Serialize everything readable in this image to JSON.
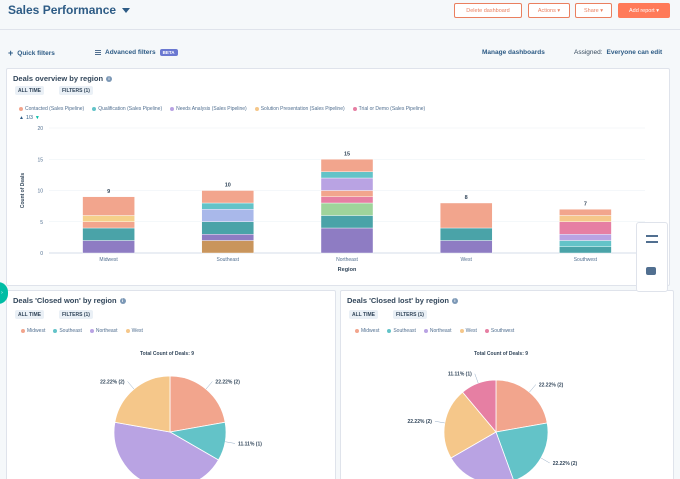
{
  "header": {
    "title": "Sales Performance",
    "buttons": {
      "delete": "Delete dashboard",
      "actions": "Actions ▾",
      "share": "Share ▾",
      "add_report": "Add report ▾"
    }
  },
  "filterbar": {
    "quick_filters": "Quick filters",
    "advanced_filters": "Advanced filters",
    "beta": "BETA",
    "manage": "Manage dashboards",
    "assigned_label": "Assigned:",
    "assigned_value": "Everyone can edit"
  },
  "overview": {
    "title": "Deals overview by region",
    "chip_time": "ALL TIME",
    "chip_filters": "FILTERS (1)",
    "pager": "1/3",
    "legend": [
      {
        "label": "Contacted (Sales Pipeline)",
        "color": "#f2a58d"
      },
      {
        "label": "Qualification (Sales Pipeline)",
        "color": "#63c3c8"
      },
      {
        "label": "Needs Analysis (Sales Pipeline)",
        "color": "#b9a3e3"
      },
      {
        "label": "Solution Presentation (Sales Pipeline)",
        "color": "#f5c78a"
      },
      {
        "label": "Trial or Demo (Sales Pipeline)",
        "color": "#e67fa3"
      }
    ]
  },
  "closed_won": {
    "title": "Deals 'Closed won' by region",
    "chip_time": "ALL TIME",
    "chip_filters": "FILTERS (1)",
    "total_label": "Total Count of Deals: 9",
    "legend": [
      {
        "label": "Midwest",
        "color": "#f2a58d"
      },
      {
        "label": "Southeast",
        "color": "#63c3c8"
      },
      {
        "label": "Northeast",
        "color": "#b9a3e3"
      },
      {
        "label": "West",
        "color": "#f5c78a"
      }
    ]
  },
  "closed_lost": {
    "title": "Deals 'Closed lost' by region",
    "chip_time": "ALL TIME",
    "chip_filters": "FILTERS (1)",
    "total_label": "Total Count of Deals: 9",
    "legend": [
      {
        "label": "Midwest",
        "color": "#f2a58d"
      },
      {
        "label": "Southeast",
        "color": "#63c3c8"
      },
      {
        "label": "Northeast",
        "color": "#b9a3e3"
      },
      {
        "label": "West",
        "color": "#f5c78a"
      },
      {
        "label": "Southwest",
        "color": "#e67fa3"
      }
    ]
  },
  "chart_data": [
    {
      "type": "bar",
      "stacked": true,
      "title": "Deals overview by region",
      "xlabel": "Region",
      "ylabel": "Count of Deals",
      "ylim": [
        0,
        20
      ],
      "yticks": [
        0,
        5,
        10,
        15,
        20
      ],
      "categories": [
        "Midwest",
        "Southeast",
        "Northeast",
        "West",
        "Southwest"
      ],
      "totals": [
        9,
        10,
        15,
        8,
        7
      ],
      "segments": [
        [
          {
            "color": "#8e7cc3",
            "value": 2
          },
          {
            "color": "#4aa3a8",
            "value": 2
          },
          {
            "color": "#f2a58d",
            "value": 1
          },
          {
            "color": "#f5d08a",
            "value": 1
          },
          {
            "color": "#f2a58d",
            "value": 3
          }
        ],
        [
          {
            "color": "#c9955c",
            "value": 2
          },
          {
            "color": "#8e7cc3",
            "value": 1
          },
          {
            "color": "#4aa3a8",
            "value": 2
          },
          {
            "color": "#a9b8ea",
            "value": 2
          },
          {
            "color": "#63c3c8",
            "value": 1
          },
          {
            "color": "#f2a58d",
            "value": 2
          }
        ],
        [
          {
            "color": "#8e7cc3",
            "value": 4
          },
          {
            "color": "#4aa3a8",
            "value": 2
          },
          {
            "color": "#9fd49b",
            "value": 2
          },
          {
            "color": "#e67fa3",
            "value": 1
          },
          {
            "color": "#f2a58d",
            "value": 1
          },
          {
            "color": "#b9a3e3",
            "value": 2
          },
          {
            "color": "#63c3c8",
            "value": 1
          },
          {
            "color": "#f2a58d",
            "value": 2
          }
        ],
        [
          {
            "color": "#8e7cc3",
            "value": 2
          },
          {
            "color": "#4aa3a8",
            "value": 2
          },
          {
            "color": "#f2a58d",
            "value": 4
          }
        ],
        [
          {
            "color": "#4aa3a8",
            "value": 1
          },
          {
            "color": "#63c3c8",
            "value": 1
          },
          {
            "color": "#b9a3e3",
            "value": 1
          },
          {
            "color": "#e67fa3",
            "value": 2
          },
          {
            "color": "#f5c78a",
            "value": 1
          },
          {
            "color": "#f2a58d",
            "value": 1
          }
        ]
      ]
    },
    {
      "type": "pie",
      "title": "Deals 'Closed won' by region",
      "slices": [
        {
          "label": "Midwest",
          "value": 2,
          "display": "22.22% (2)",
          "color": "#f2a58d"
        },
        {
          "label": "Southeast",
          "value": 1,
          "display": "11.11% (1)",
          "color": "#63c3c8"
        },
        {
          "label": "Northeast",
          "value": 4,
          "display": "",
          "color": "#b9a3e3"
        },
        {
          "label": "West",
          "value": 2,
          "display": "22.22% (2)",
          "color": "#f5c78a"
        }
      ]
    },
    {
      "type": "pie",
      "title": "Deals 'Closed lost' by region",
      "slices": [
        {
          "label": "Midwest",
          "value": 2,
          "display": "22.22% (2)",
          "color": "#f2a58d"
        },
        {
          "label": "Southeast",
          "value": 2,
          "display": "22.22% (2)",
          "color": "#63c3c8"
        },
        {
          "label": "Northeast",
          "value": 2,
          "display": "",
          "color": "#b9a3e3"
        },
        {
          "label": "West",
          "value": 2,
          "display": "22.22% (2)",
          "color": "#f5c78a"
        },
        {
          "label": "Southwest",
          "value": 1,
          "display": "11.11% (1)",
          "color": "#e67fa3"
        }
      ]
    }
  ]
}
